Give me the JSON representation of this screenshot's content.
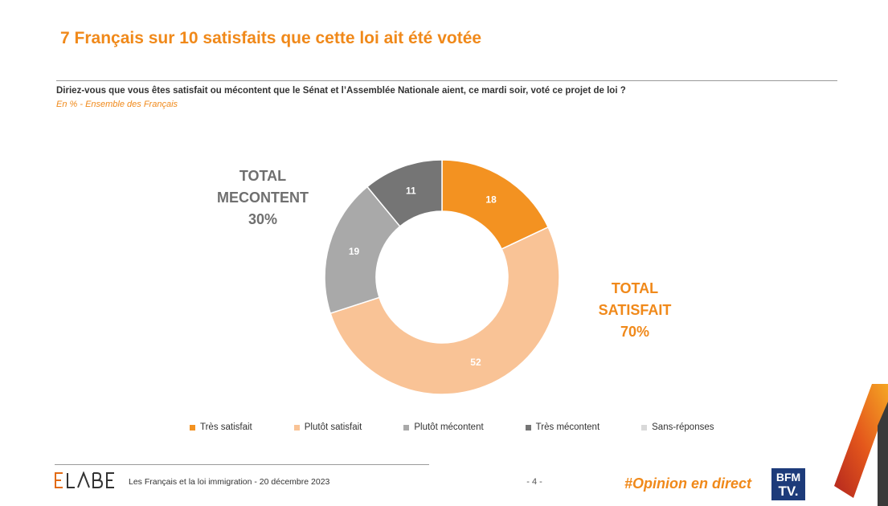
{
  "header": {
    "title": "7 Français sur 10 satisfaits que cette loi ait été votée",
    "question": "Diriez-vous que vous êtes satisfait ou mécontent que le Sénat et l’Assemblée Nationale aient, ce mardi soir, voté ce projet de loi ?",
    "subtitle": "En % - Ensemble des Français"
  },
  "totals": {
    "mecontent": {
      "line1": "TOTAL",
      "line2": "MECONTENT",
      "value": "30%"
    },
    "satisfait": {
      "line1": "TOTAL",
      "line2": "SATISFAIT",
      "value": "70%"
    }
  },
  "chart_data": {
    "type": "pie",
    "variant": "donut",
    "unit": "%",
    "categories": [
      "Très satisfait",
      "Plutôt satisfait",
      "Plutôt mécontent",
      "Très mécontent",
      "Sans-réponses"
    ],
    "values": [
      18,
      52,
      19,
      11,
      0
    ],
    "labels": [
      "18",
      "52",
      "19",
      "11",
      ""
    ],
    "colors": [
      "#f39221",
      "#f9c396",
      "#a9a9a9",
      "#757575",
      "#d9d9d9"
    ],
    "start": "top, clockwise",
    "legend_position": "bottom"
  },
  "footer": {
    "logo": "ELABE",
    "text": "Les Français et la loi immigration - 20 décembre 2023",
    "page": "- 4 -",
    "hashtag": "#Opinion en direct",
    "bfm_logo": "BFM TV."
  }
}
